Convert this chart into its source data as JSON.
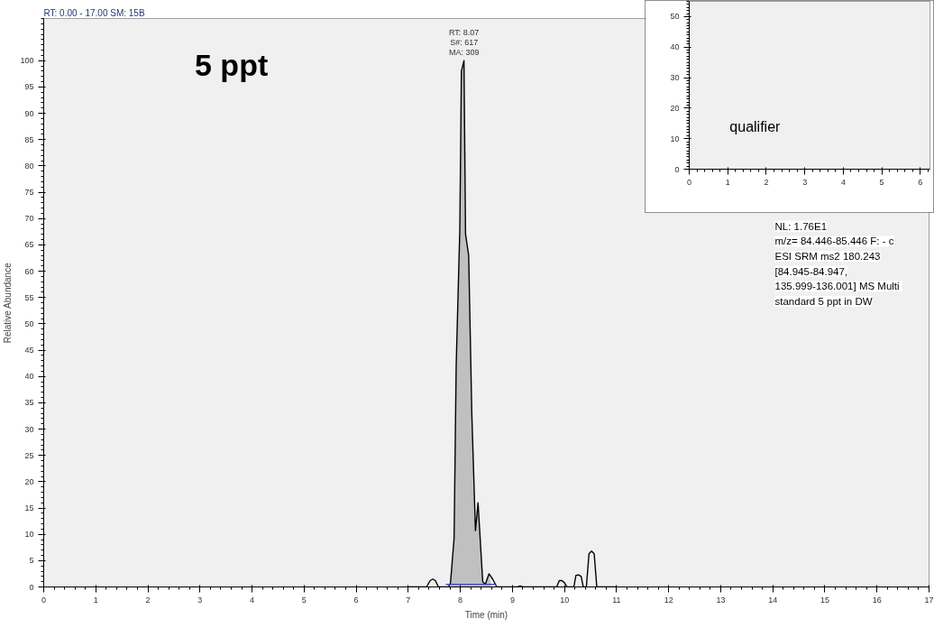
{
  "chart_data": [
    {
      "type": "line",
      "title": "5 ppt",
      "xlabel": "Time (min)",
      "ylabel": "Relative Abundance",
      "xlim": [
        0,
        17
      ],
      "ylim": [
        0,
        108
      ],
      "xticks": [
        0,
        1,
        2,
        3,
        4,
        5,
        6,
        7,
        8,
        9,
        10,
        11,
        12,
        13,
        14,
        15,
        16,
        17
      ],
      "yticks": [
        0,
        5,
        10,
        15,
        20,
        25,
        30,
        35,
        40,
        45,
        50,
        55,
        60,
        65,
        70,
        75,
        80,
        85,
        90,
        95,
        100
      ],
      "grid": false,
      "series": [
        {
          "type": "area",
          "color": "#c0c0c0",
          "x": [
            7.77,
            7.81,
            7.88,
            7.92,
            7.99,
            8.02,
            8.07,
            8.1,
            8.16,
            8.22,
            8.29,
            8.34,
            8.43,
            8.48,
            8.55,
            8.6
          ],
          "values": [
            0,
            0.7,
            9.3,
            42,
            68,
            98,
            100,
            67,
            63,
            33,
            10.7,
            16,
            1,
            0.5,
            2.5,
            0
          ]
        },
        {
          "color": "#000000",
          "x": [
            7.0,
            7.35,
            7.42,
            7.47,
            7.52,
            7.58,
            7.7,
            7.77,
            7.81,
            7.88,
            7.92,
            7.99,
            8.02,
            8.07,
            8.1,
            8.16,
            8.22,
            8.29,
            8.34,
            8.43,
            8.48,
            8.55,
            8.62,
            8.7,
            9.1,
            9.15,
            9.2,
            9.85,
            9.9,
            9.95,
            10.0,
            10.05,
            10.18,
            10.22,
            10.27,
            10.32,
            10.36,
            10.42,
            10.47,
            10.52,
            10.57,
            10.62,
            10.7,
            11.0
          ],
          "values": [
            0,
            0,
            1.2,
            1.5,
            1.2,
            0,
            0,
            0,
            0.7,
            9.3,
            42,
            68,
            98,
            100,
            67,
            63,
            33,
            10.7,
            16,
            1,
            0.5,
            2.5,
            1.5,
            0,
            0,
            0.2,
            0,
            0,
            1.2,
            1.2,
            0.8,
            0,
            0,
            2.2,
            2.3,
            2.0,
            0,
            0,
            6.3,
            6.8,
            6.3,
            0,
            0,
            0
          ]
        },
        {
          "color": "#3a3ad0",
          "x": [
            7.72,
            7.95,
            8.2,
            8.45,
            8.68
          ],
          "values": [
            0.5,
            0.5,
            0.5,
            0.5,
            0.5
          ]
        }
      ],
      "annotations": [
        "RT: 0.00 - 17.00  SM: 15B",
        {
          "text": "RT: 8.07\nS#: 617\nMA: 309",
          "x": 8.07,
          "y": 100
        },
        "NL: 1.76E1\nm/z= 84.446-85.446 F: - c\nESI SRM ms2 180.243\n[84.945-84.947,\n135.999-136.001]  MS Multi\nstandard 5 ppt in DW"
      ]
    },
    {
      "type": "line",
      "xlim": [
        0,
        6.25
      ],
      "ylim": [
        0,
        55
      ],
      "xticks": [
        0,
        1,
        2,
        3,
        4,
        5,
        6
      ],
      "yticks": [
        0,
        10,
        20,
        30,
        40,
        50
      ],
      "grid": false,
      "annotations": [
        "qualifier"
      ]
    }
  ]
}
